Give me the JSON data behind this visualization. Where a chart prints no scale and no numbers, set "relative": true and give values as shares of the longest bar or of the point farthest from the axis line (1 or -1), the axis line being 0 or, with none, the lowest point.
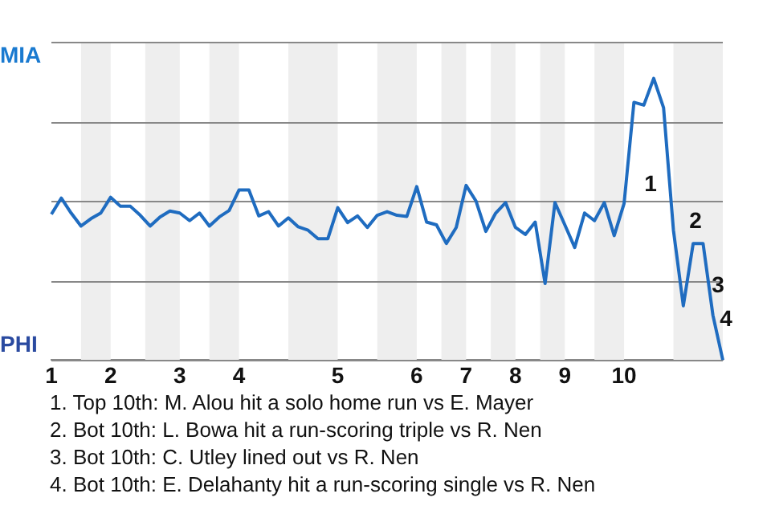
{
  "chart_data": {
    "type": "line",
    "relative": true,
    "categories": [
      "1",
      null,
      null,
      null,
      null,
      null,
      "2",
      null,
      null,
      null,
      null,
      null,
      null,
      "3",
      null,
      null,
      null,
      null,
      null,
      "4",
      null,
      null,
      null,
      null,
      null,
      null,
      null,
      null,
      null,
      "5",
      null,
      null,
      null,
      null,
      null,
      null,
      null,
      "6",
      null,
      null,
      null,
      null,
      "7",
      null,
      null,
      null,
      null,
      "8",
      null,
      null,
      null,
      null,
      "9",
      null,
      null,
      null,
      null,
      null,
      "10",
      null,
      null,
      null,
      null,
      null,
      null,
      null,
      null,
      null,
      null
    ],
    "series": [
      {
        "color": "#1f6cc0",
        "values": [
          0.518,
          0.575,
          0.522,
          0.476,
          0.502,
          0.522,
          0.578,
          0.546,
          0.546,
          0.514,
          0.476,
          0.508,
          0.529,
          0.522,
          0.495,
          0.522,
          0.476,
          0.508,
          0.531,
          0.604,
          0.604,
          0.512,
          0.527,
          0.476,
          0.505,
          0.473,
          0.461,
          0.431,
          0.431,
          0.541,
          0.488,
          0.512,
          0.471,
          0.514,
          0.527,
          0.514,
          0.51,
          0.616,
          0.49,
          0.48,
          0.414,
          0.471,
          0.62,
          0.565,
          0.457,
          0.522,
          0.559,
          0.471,
          0.446,
          0.49,
          0.272,
          0.559,
          0.48,
          0.4,
          0.522,
          0.495,
          0.559,
          0.442,
          0.556,
          0.915,
          0.905,
          1,
          0.896,
          0.461,
          0.193,
          0.414,
          0.414,
          0.159,
          0
        ]
      }
    ],
    "grid": "y",
    "marker": "none",
    "annotations": [
      "MIA",
      "PHI",
      "1",
      "2",
      "3",
      "4",
      "1. Top 10th: M. Alou hit a solo home run vs E. Mayer",
      "2. Bot 10th: L. Bowa hit a run-scoring triple vs R. Nen",
      "3. Bot 10th: C. Utley lined out vs R. Nen",
      "4. Bot 10th: E. Delahanty hit a run-scoring single vs R. Nen"
    ]
  }
}
